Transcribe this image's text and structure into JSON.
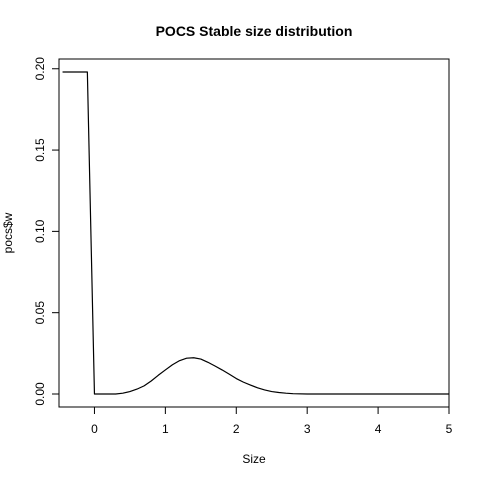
{
  "chart_data": {
    "type": "line",
    "title": "POCS Stable size distribution",
    "xlabel": "Size",
    "ylabel": "pocs$w",
    "xlim": [
      -0.5,
      5.0
    ],
    "ylim": [
      -0.008,
      0.206
    ],
    "x_ticks": [
      0,
      1,
      2,
      3,
      4,
      5
    ],
    "x_tick_labels": [
      "0",
      "1",
      "2",
      "3",
      "4",
      "5"
    ],
    "y_ticks": [
      0.0,
      0.05,
      0.1,
      0.15,
      0.2
    ],
    "y_tick_labels": [
      "0.00",
      "0.05",
      "0.10",
      "0.15",
      "0.20"
    ],
    "grid": false,
    "series": [
      {
        "color": "#000000",
        "x": [
          -0.45,
          -0.1,
          0.0,
          0.1,
          0.2,
          0.3,
          0.4,
          0.5,
          0.6,
          0.7,
          0.8,
          0.9,
          1.0,
          1.1,
          1.2,
          1.3,
          1.4,
          1.5,
          1.6,
          1.7,
          1.8,
          1.9,
          2.0,
          2.1,
          2.2,
          2.3,
          2.4,
          2.5,
          2.6,
          2.7,
          2.8,
          3.0,
          3.5,
          4.0,
          4.5,
          5.0
        ],
        "y": [
          0.198,
          0.198,
          0.0,
          0.0,
          0.0,
          0.0,
          0.0005,
          0.0015,
          0.003,
          0.005,
          0.008,
          0.0115,
          0.0148,
          0.018,
          0.0205,
          0.022,
          0.0223,
          0.0215,
          0.0195,
          0.0172,
          0.0148,
          0.0122,
          0.0095,
          0.0073,
          0.0055,
          0.0038,
          0.0025,
          0.0015,
          0.0009,
          0.0005,
          0.0002,
          0.0,
          0.0,
          0.0,
          0.0,
          0.0
        ]
      }
    ]
  }
}
